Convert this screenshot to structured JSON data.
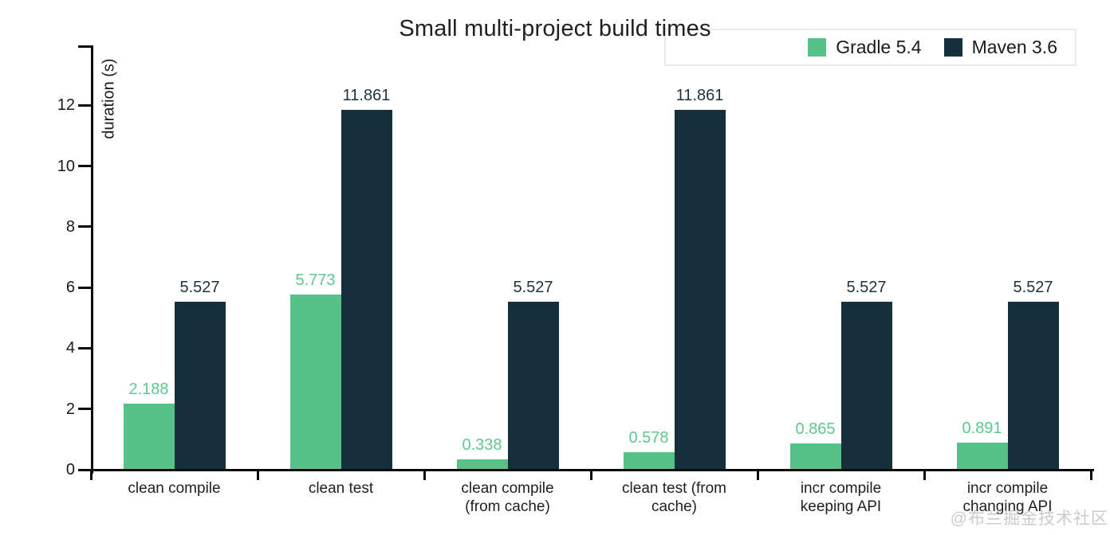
{
  "page": {
    "background": "#ffffff",
    "watermark": "@布兰掘金技术社区"
  },
  "chart_data": {
    "type": "bar",
    "title": "Small multi-project build times",
    "ylabel": "duration (s)",
    "xlabel": "",
    "categories": [
      "clean compile",
      "clean test",
      "clean compile\n(from cache)",
      "clean test (from\ncache)",
      "incr compile\nkeeping API",
      "incr compile\nchanging API"
    ],
    "series": [
      {
        "name": "Gradle 5.4",
        "color": "#57c287",
        "label_color": "#5fc78e",
        "values": [
          2.188,
          5.773,
          0.338,
          0.578,
          0.865,
          0.891
        ]
      },
      {
        "name": "Maven 3.6",
        "color": "#15303c",
        "label_color": "#1d323e",
        "values": [
          5.527,
          11.861,
          5.527,
          11.861,
          5.527,
          5.527
        ]
      }
    ],
    "value_labels": [
      "2.188",
      "5.773",
      "0.338",
      "0.578",
      "0.865",
      "0.891",
      "5.527",
      "11.861",
      "5.527",
      "11.861",
      "5.527",
      "5.527"
    ],
    "yticks": [
      0,
      2,
      4,
      6,
      8,
      10,
      12
    ],
    "ylim": [
      0,
      13.95
    ],
    "grid": false,
    "legend_position": "top-right",
    "axis_color": "#0b0b0b"
  }
}
